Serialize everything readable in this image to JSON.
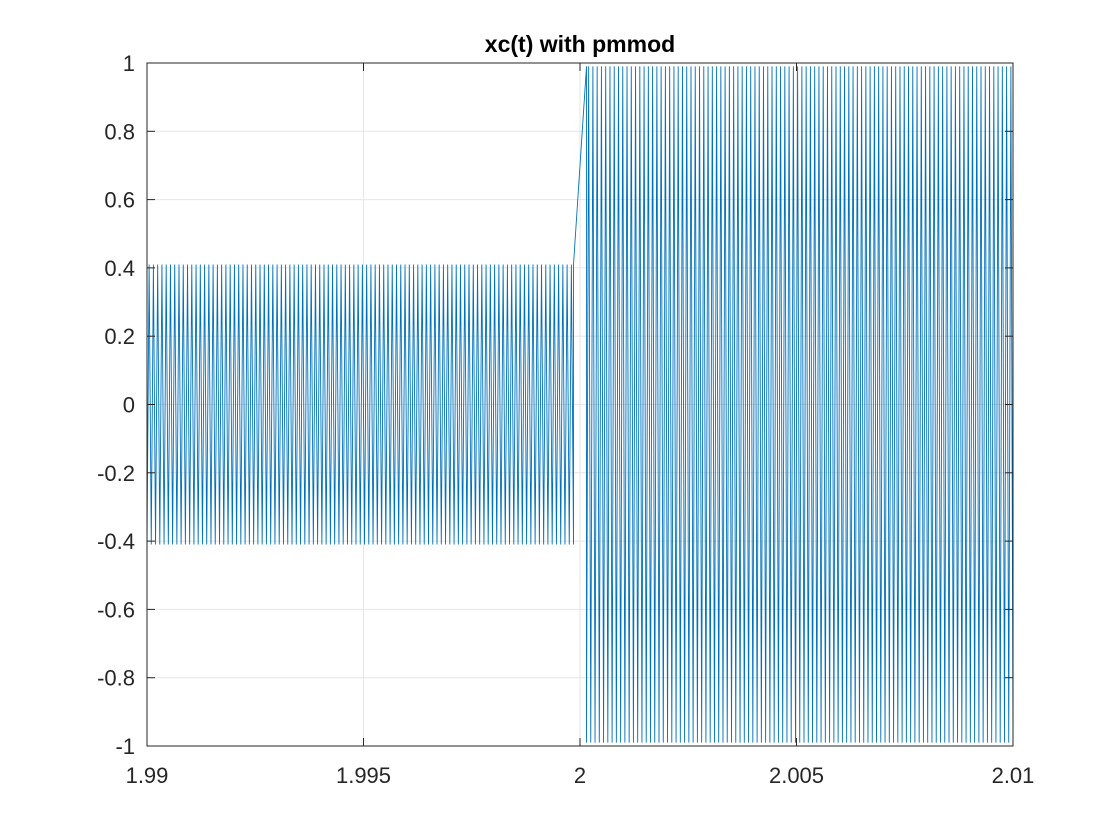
{
  "chart_data": {
    "type": "line",
    "title": "xc(t) with pmmod",
    "xlabel": "",
    "ylabel": "",
    "xlim": [
      1.99,
      2.01
    ],
    "ylim": [
      -1,
      1
    ],
    "x_ticks": [
      {
        "value": 1.99,
        "label": "1.99"
      },
      {
        "value": 1.995,
        "label": "1.995"
      },
      {
        "value": 2.0,
        "label": "2"
      },
      {
        "value": 2.005,
        "label": "2.005"
      },
      {
        "value": 2.01,
        "label": "2.01"
      }
    ],
    "y_ticks": [
      {
        "value": 1,
        "label": "1"
      },
      {
        "value": 0.8,
        "label": "0.8"
      },
      {
        "value": 0.6,
        "label": "0.6"
      },
      {
        "value": 0.4,
        "label": "0.4"
      },
      {
        "value": 0.2,
        "label": "0.2"
      },
      {
        "value": 0,
        "label": "0"
      },
      {
        "value": -0.2,
        "label": "-0.2"
      },
      {
        "value": -0.4,
        "label": "-0.4"
      },
      {
        "value": -0.6,
        "label": "-0.6"
      },
      {
        "value": -0.8,
        "label": "-0.8"
      },
      {
        "value": -1,
        "label": "-1"
      }
    ],
    "grid": true,
    "series": [
      {
        "color": "#0072BD",
        "segments": [
          {
            "x_start": 1.99,
            "x_end": 1.99985,
            "amplitude": 0.41,
            "cycles": 100
          },
          {
            "x_start": 2.00015,
            "x_end": 2.01,
            "amplitude": 0.99,
            "cycles": 100
          }
        ],
        "transition": [
          [
            1.99985,
            0.41
          ],
          [
            2.00015,
            0.99
          ]
        ]
      }
    ]
  }
}
